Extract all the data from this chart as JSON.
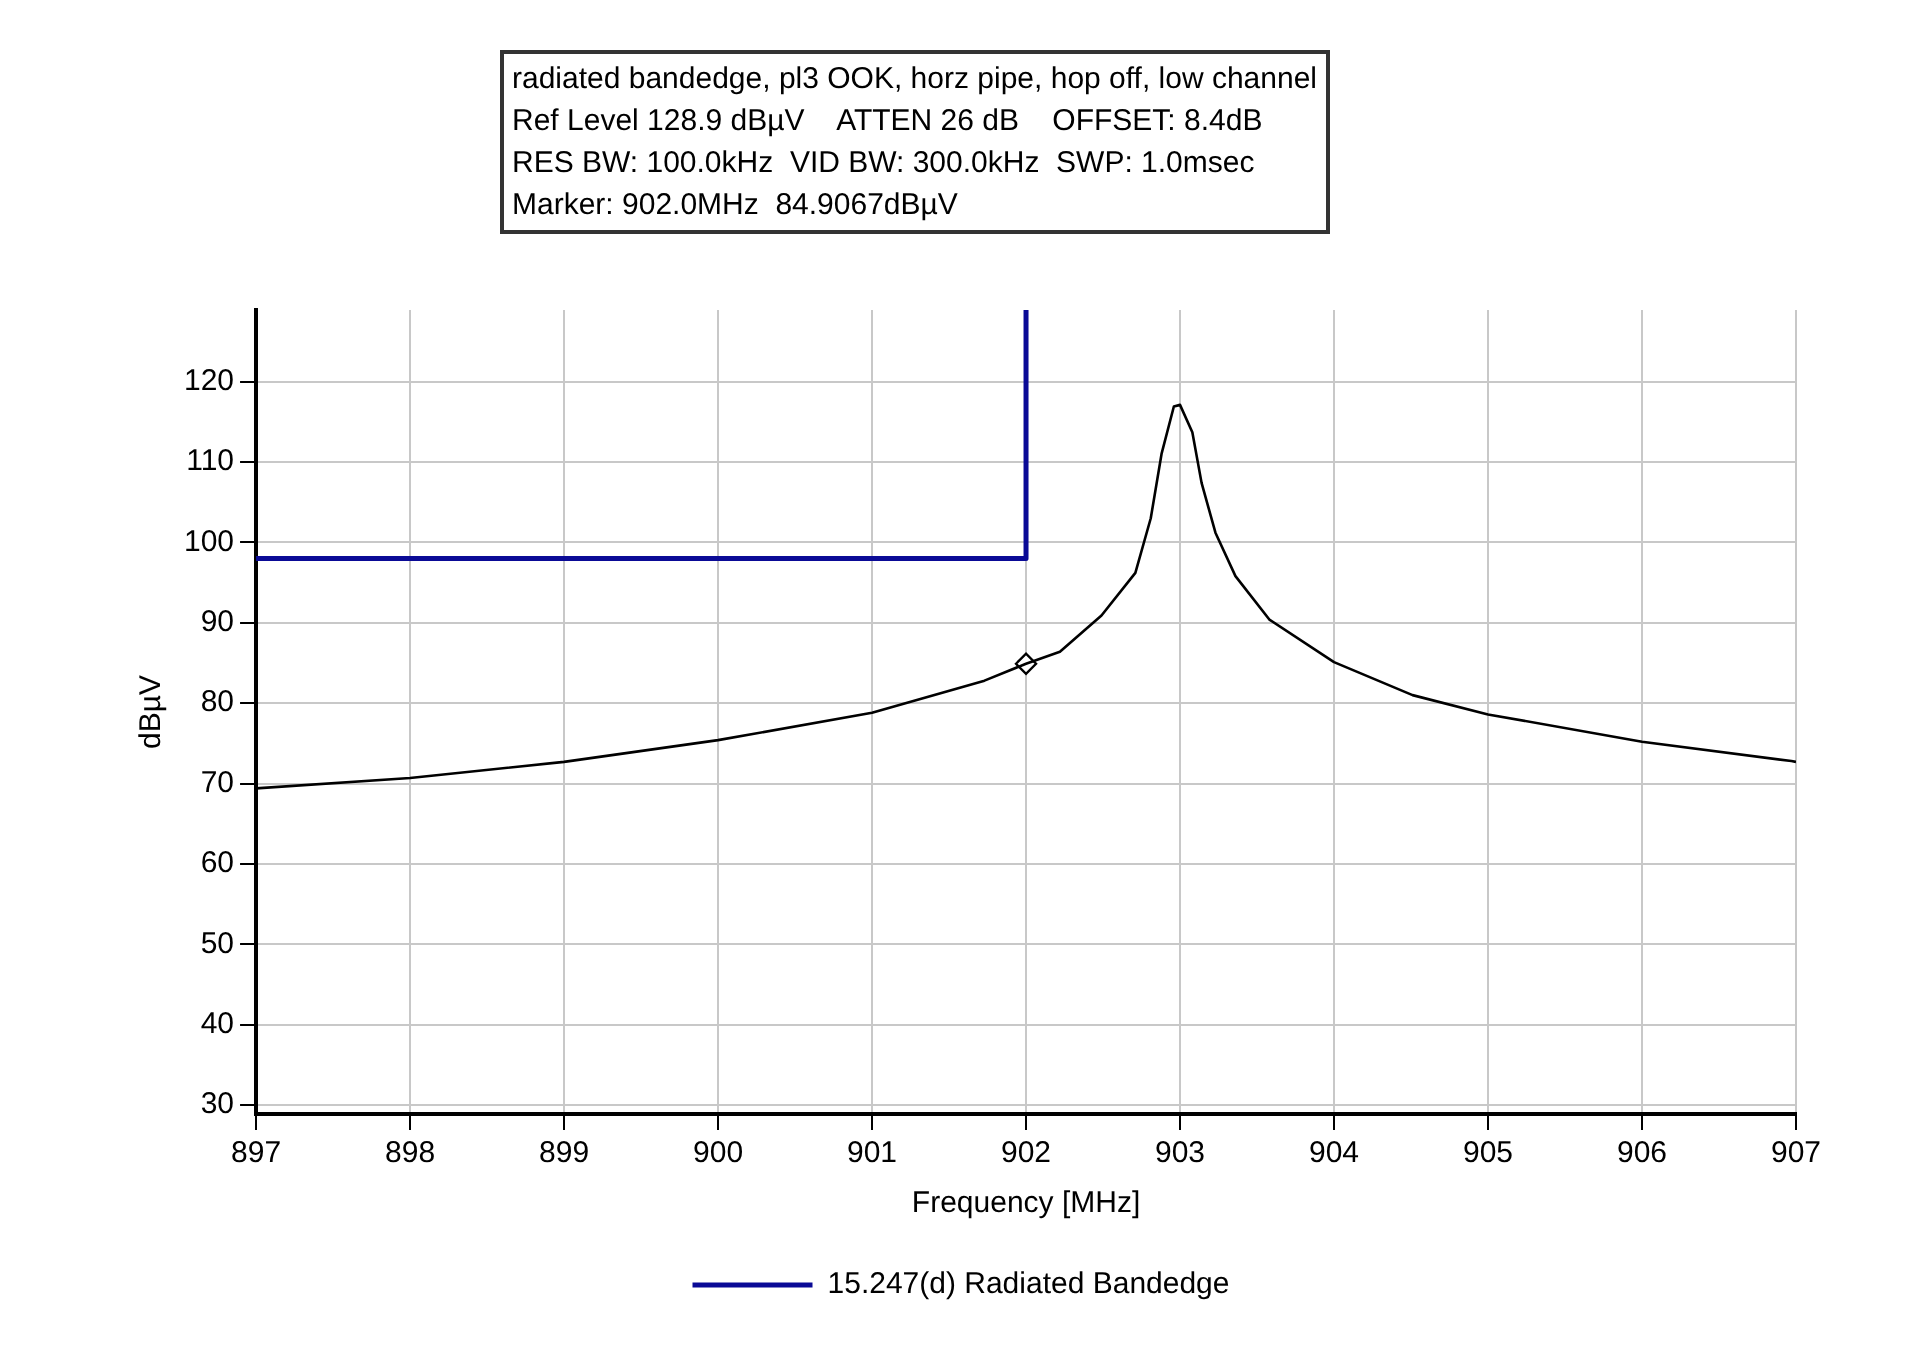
{
  "chart_data": {
    "type": "line",
    "xlabel": "Frequency [MHz]",
    "ylabel": "dBµV",
    "annotations": [
      "radiated bandedge, pl3 OOK, horz pipe, hop off, low channel",
      "Ref Level 128.9 dBµV    ATTEN 26 dB    OFFSET: 8.4dB",
      "RES BW: 100.0kHz  VID BW: 300.0kHz  SWP: 1.0msec",
      "Marker: 902.0MHz  84.9067dBµV"
    ],
    "xlim": [
      897,
      907
    ],
    "ylim": [
      28.9,
      128.9
    ],
    "xticks": [
      897,
      898,
      899,
      900,
      901,
      902,
      903,
      904,
      905,
      906,
      907
    ],
    "yticks": [
      30,
      40,
      50,
      60,
      70,
      80,
      90,
      100,
      110,
      120
    ],
    "grid": true,
    "legend": "bottom",
    "marker": "none",
    "line_style": "solid",
    "series": [
      {
        "type": "line",
        "color": "#000000",
        "x": [
          897,
          898,
          899,
          900,
          901,
          901.73,
          902,
          902.22,
          902.49,
          902.71,
          902.81,
          902.88,
          902.96,
          903,
          903.08,
          903.14,
          903.23,
          903.36,
          903.58,
          904,
          904.51,
          905,
          906,
          906.97,
          907
        ],
        "values": [
          69.4,
          70.7,
          72.7,
          75.4,
          78.8,
          82.8,
          84.9,
          86.4,
          90.9,
          96.2,
          103.0,
          111.0,
          116.9,
          117.1,
          113.7,
          107.4,
          101.2,
          95.8,
          90.4,
          85.1,
          81.0,
          78.6,
          75.2,
          72.8,
          72.7
        ]
      },
      {
        "type": "scatter",
        "color": "#000000",
        "marker": "diamond",
        "x": [
          902
        ],
        "values": [
          84.9
        ]
      },
      {
        "type": "line",
        "name": "15.247(d) Radiated Bandedge",
        "color": "#0a0a96",
        "x": [
          897,
          902,
          902
        ],
        "values": [
          98,
          98,
          128.9
        ]
      }
    ]
  }
}
